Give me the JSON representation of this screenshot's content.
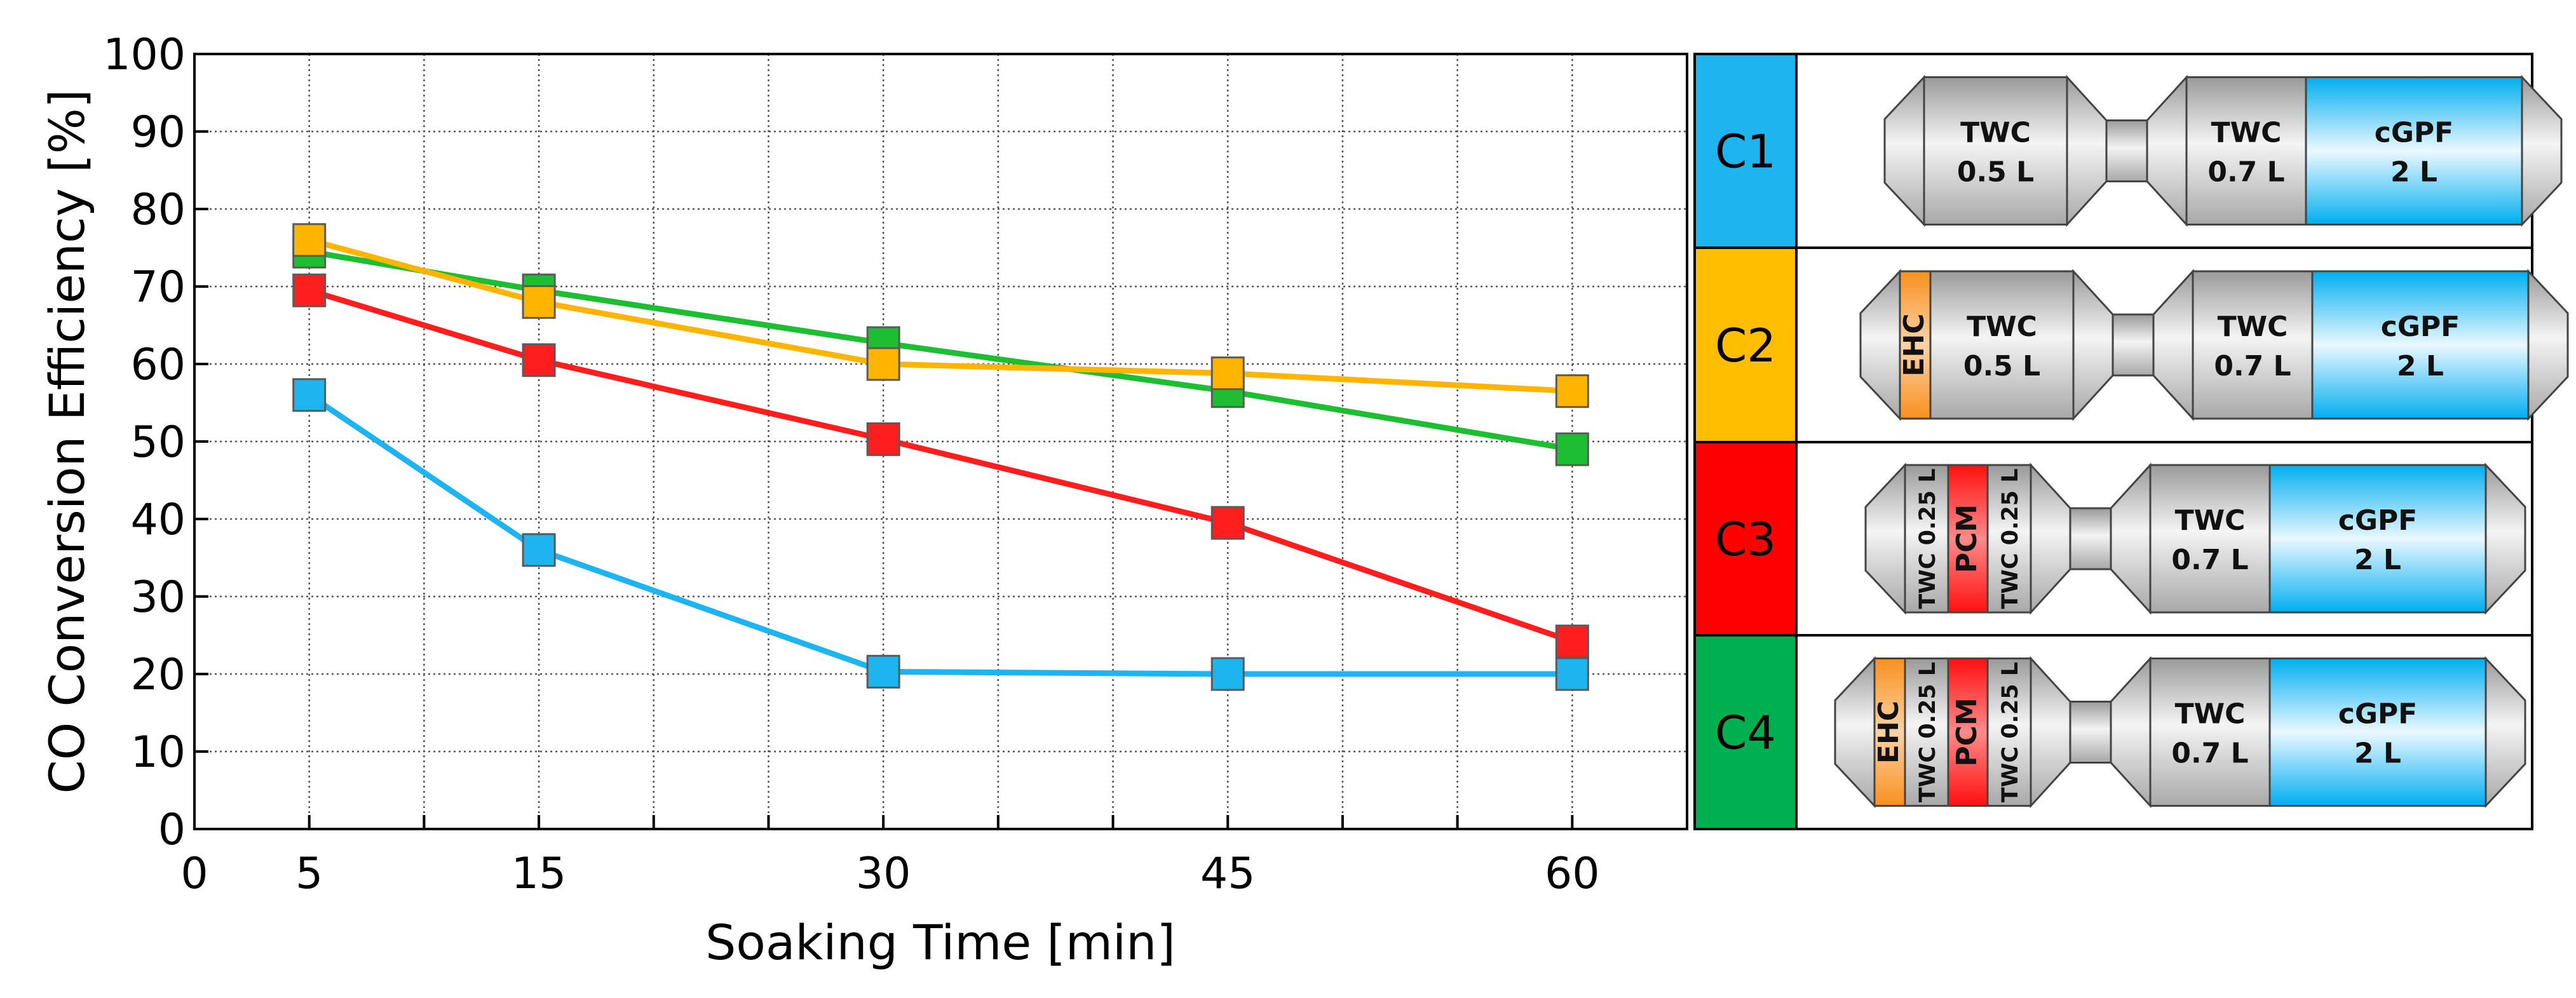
{
  "chart_data": {
    "type": "line",
    "xlabel": "Soaking Time [min]",
    "ylabel": "CO Conversion Efficiency [%]",
    "xlim": [
      0,
      65
    ],
    "ylim": [
      0,
      100
    ],
    "xticks_labeled": [
      0,
      5,
      15,
      30,
      45,
      60
    ],
    "xgrid": [
      5,
      10,
      15,
      20,
      25,
      30,
      35,
      40,
      45,
      50,
      55,
      60
    ],
    "yticks": [
      0,
      10,
      20,
      30,
      40,
      50,
      60,
      70,
      80,
      90,
      100
    ],
    "grid": true,
    "marker": "square",
    "series": [
      {
        "name": "C1",
        "color": "#1EB4F0",
        "x": [
          5,
          15,
          30,
          45,
          60
        ],
        "y": [
          56,
          36,
          20.3,
          20,
          20
        ]
      },
      {
        "name": "C2",
        "color": "#FFB400",
        "x": [
          5,
          15,
          30,
          45,
          60
        ],
        "y": [
          76,
          68,
          60,
          58.8,
          56.5
        ]
      },
      {
        "name": "C3",
        "color": "#FF1E1E",
        "x": [
          5,
          15,
          30,
          45,
          60
        ],
        "y": [
          69.5,
          60.5,
          50.3,
          39.5,
          24.2
        ]
      },
      {
        "name": "C4",
        "color": "#1EBE32",
        "x": [
          5,
          15,
          30,
          45,
          60
        ],
        "y": [
          74.5,
          69.5,
          62.7,
          56.5,
          49
        ]
      }
    ]
  },
  "configurations": [
    {
      "id": "C1",
      "color": "#1EB4F0",
      "stage1": [
        {
          "label": "TWC\n0.5 L",
          "type": "twc"
        }
      ],
      "stage2": [
        {
          "label": "TWC\n0.7 L",
          "type": "twc"
        },
        {
          "label": "cGPF\n2 L",
          "type": "gpf"
        }
      ]
    },
    {
      "id": "C2",
      "color": "#FFBE00",
      "stage1": [
        {
          "label": "EHC",
          "type": "ehc"
        },
        {
          "label": "TWC\n0.5 L",
          "type": "twc"
        }
      ],
      "stage2": [
        {
          "label": "TWC\n0.7 L",
          "type": "twc"
        },
        {
          "label": "cGPF\n2 L",
          "type": "gpf"
        }
      ]
    },
    {
      "id": "C3",
      "color": "#FF0000",
      "stage1": [
        {
          "label": "TWC 0.25 L",
          "type": "twc-rot"
        },
        {
          "label": "PCM",
          "type": "pcm"
        },
        {
          "label": "TWC 0.25 L",
          "type": "twc-rot"
        }
      ],
      "stage2": [
        {
          "label": "TWC\n0.7 L",
          "type": "twc"
        },
        {
          "label": "cGPF\n2 L",
          "type": "gpf"
        }
      ]
    },
    {
      "id": "C4",
      "color": "#00B050",
      "stage1": [
        {
          "label": "EHC",
          "type": "ehc"
        },
        {
          "label": "TWC 0.25 L",
          "type": "twc-rot"
        },
        {
          "label": "PCM",
          "type": "pcm"
        },
        {
          "label": "TWC 0.25 L",
          "type": "twc-rot"
        }
      ],
      "stage2": [
        {
          "label": "TWC\n0.7 L",
          "type": "twc"
        },
        {
          "label": "cGPF\n2 L",
          "type": "gpf"
        }
      ]
    }
  ]
}
